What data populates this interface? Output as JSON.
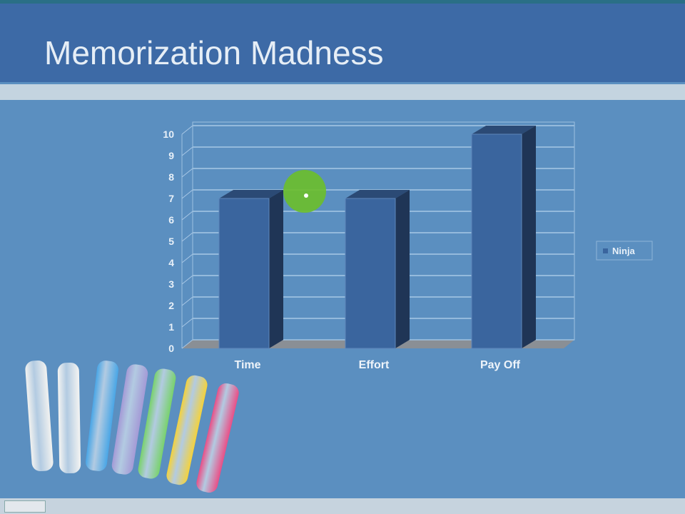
{
  "slide": {
    "title": "Memorization Madness"
  },
  "chart_data": {
    "type": "bar",
    "style": "3d-column",
    "categories": [
      "Time",
      "Effort",
      "Pay Off"
    ],
    "series": [
      {
        "name": "Ninja",
        "values": [
          7,
          7,
          10
        ],
        "color": "#3a659e"
      }
    ],
    "ylim": [
      0,
      10
    ],
    "yticks": [
      0,
      1,
      2,
      3,
      4,
      5,
      6,
      7,
      8,
      9,
      10
    ],
    "grid": true,
    "legend": "right"
  },
  "colors": {
    "background": "#5b8fc0",
    "title_bar": "#3d6aa6",
    "bar_front": "#3a659e",
    "bar_side": "#1f3556",
    "bar_top": "#2b4a75"
  }
}
